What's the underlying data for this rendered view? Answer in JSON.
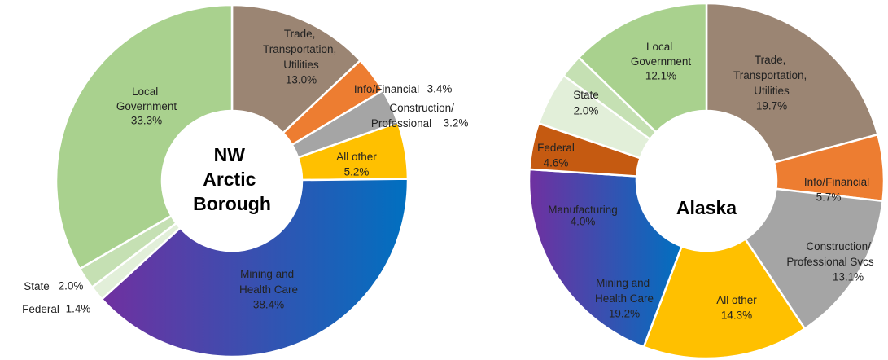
{
  "chart_data": [
    {
      "type": "donut",
      "title": "NW Arctic Borough",
      "categories": [
        "Trade, Transportation, Utilities",
        "Info/Financial",
        "Construction/ Professional",
        "All other",
        "Mining and Health Care",
        "Federal",
        "State",
        "Local Government"
      ],
      "values": [
        13.0,
        3.4,
        3.2,
        5.2,
        38.4,
        1.4,
        2.0,
        33.3
      ],
      "value_labels": [
        "13.0%",
        "3.4%",
        "3.2%",
        "5.2%",
        "38.4%",
        "1.4%",
        "2.0%",
        "33.3%"
      ],
      "colors": [
        "#9b8573",
        "#ed7d31",
        "#a5a5a5",
        "#ffc000",
        [
          "#7030a0",
          "#0070c0"
        ],
        "#e2efd9",
        "#c5e0b3",
        "#a9d18e"
      ]
    },
    {
      "type": "donut",
      "title": "Alaska",
      "categories": [
        "Trade, Transportation, Utilities",
        "Info/Financial",
        "Construction/ Professional Svcs",
        "All other",
        "Mining and Health Care",
        "Manufacturing",
        "Federal",
        "State",
        "Local Government"
      ],
      "values": [
        19.7,
        5.7,
        13.1,
        14.3,
        19.2,
        4.0,
        4.6,
        2.0,
        12.1
      ],
      "value_labels": [
        "19.7%",
        "5.7%",
        "13.1%",
        "14.3%",
        "19.2%",
        "4.0%",
        "4.6%",
        "2.0%",
        "12.1%"
      ],
      "colors": [
        "#9b8573",
        "#ed7d31",
        "#a5a5a5",
        "#ffc000",
        [
          "#7030a0",
          "#0070c0"
        ],
        "#c55a11",
        "#e2efd9",
        "#c5e0b3",
        "#a9d18e"
      ]
    }
  ]
}
